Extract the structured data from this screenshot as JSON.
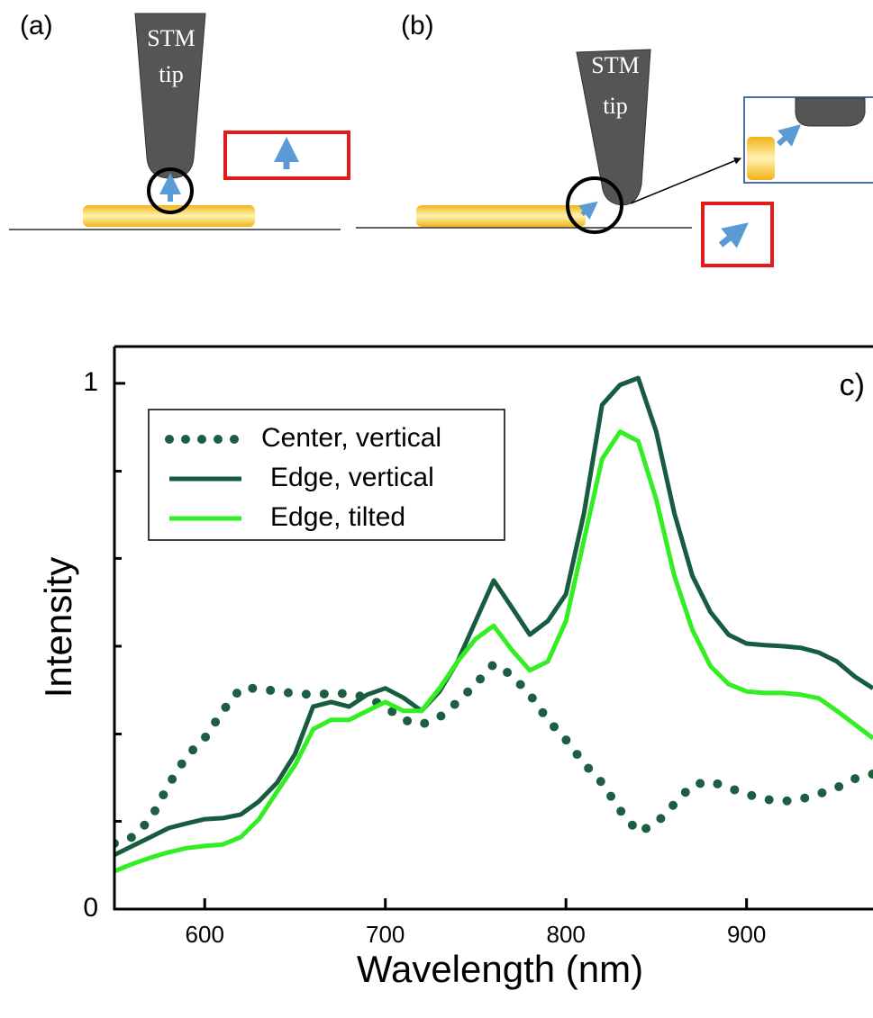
{
  "diagram": {
    "panels": [
      {
        "label": "(a)",
        "tip_lines": [
          "STM",
          "tip"
        ]
      },
      {
        "label": "(b)",
        "tip_lines": [
          "STM",
          "tip"
        ]
      }
    ]
  },
  "chart_data": {
    "type": "line",
    "panel_label": "c)",
    "x_label": "Wavelength (nm)",
    "y_label": "Intensity",
    "xlim": [
      550,
      970
    ],
    "ylim": [
      0,
      1.07
    ],
    "xticks": [
      600,
      700,
      800,
      900
    ],
    "yticks": [
      0,
      1
    ],
    "minor_yticks": [
      0.167,
      0.333,
      0.5,
      0.667,
      0.833
    ],
    "x": [
      550,
      560,
      570,
      580,
      590,
      600,
      610,
      620,
      630,
      640,
      650,
      660,
      670,
      680,
      690,
      700,
      710,
      720,
      730,
      740,
      750,
      760,
      770,
      780,
      790,
      800,
      810,
      820,
      830,
      840,
      850,
      860,
      870,
      880,
      890,
      900,
      910,
      920,
      930,
      940,
      950,
      960,
      970
    ],
    "series": [
      {
        "name": "Center, vertical",
        "color": "#1e5e40",
        "line_style": "dotted",
        "values": [
          0.125,
          0.137,
          0.171,
          0.236,
          0.291,
          0.325,
          0.377,
          0.42,
          0.42,
          0.414,
          0.41,
          0.408,
          0.41,
          0.41,
          0.402,
          0.385,
          0.36,
          0.351,
          0.365,
          0.394,
          0.428,
          0.466,
          0.445,
          0.408,
          0.36,
          0.322,
          0.277,
          0.24,
          0.188,
          0.146,
          0.163,
          0.2,
          0.236,
          0.243,
          0.231,
          0.219,
          0.209,
          0.205,
          0.209,
          0.219,
          0.231,
          0.248,
          0.257
        ]
      },
      {
        "name": "Edge, vertical",
        "color": "#175c3f",
        "line_style": "solid",
        "values": [
          0.103,
          0.12,
          0.137,
          0.154,
          0.163,
          0.171,
          0.173,
          0.18,
          0.205,
          0.24,
          0.295,
          0.385,
          0.394,
          0.385,
          0.408,
          0.42,
          0.402,
          0.377,
          0.414,
          0.471,
          0.548,
          0.625,
          0.574,
          0.522,
          0.548,
          0.599,
          0.753,
          0.959,
          0.997,
          1.01,
          0.908,
          0.753,
          0.634,
          0.565,
          0.522,
          0.505,
          0.502,
          0.5,
          0.497,
          0.488,
          0.471,
          0.442,
          0.42
        ]
      },
      {
        "name": "Edge, tilted",
        "color": "#33ee22",
        "line_style": "solid",
        "values": [
          0.072,
          0.086,
          0.098,
          0.108,
          0.116,
          0.12,
          0.123,
          0.137,
          0.171,
          0.223,
          0.274,
          0.342,
          0.36,
          0.36,
          0.377,
          0.394,
          0.377,
          0.377,
          0.42,
          0.471,
          0.514,
          0.539,
          0.493,
          0.454,
          0.471,
          0.548,
          0.702,
          0.856,
          0.908,
          0.89,
          0.779,
          0.634,
          0.531,
          0.462,
          0.428,
          0.414,
          0.411,
          0.411,
          0.408,
          0.401,
          0.377,
          0.351,
          0.325
        ]
      }
    ]
  }
}
